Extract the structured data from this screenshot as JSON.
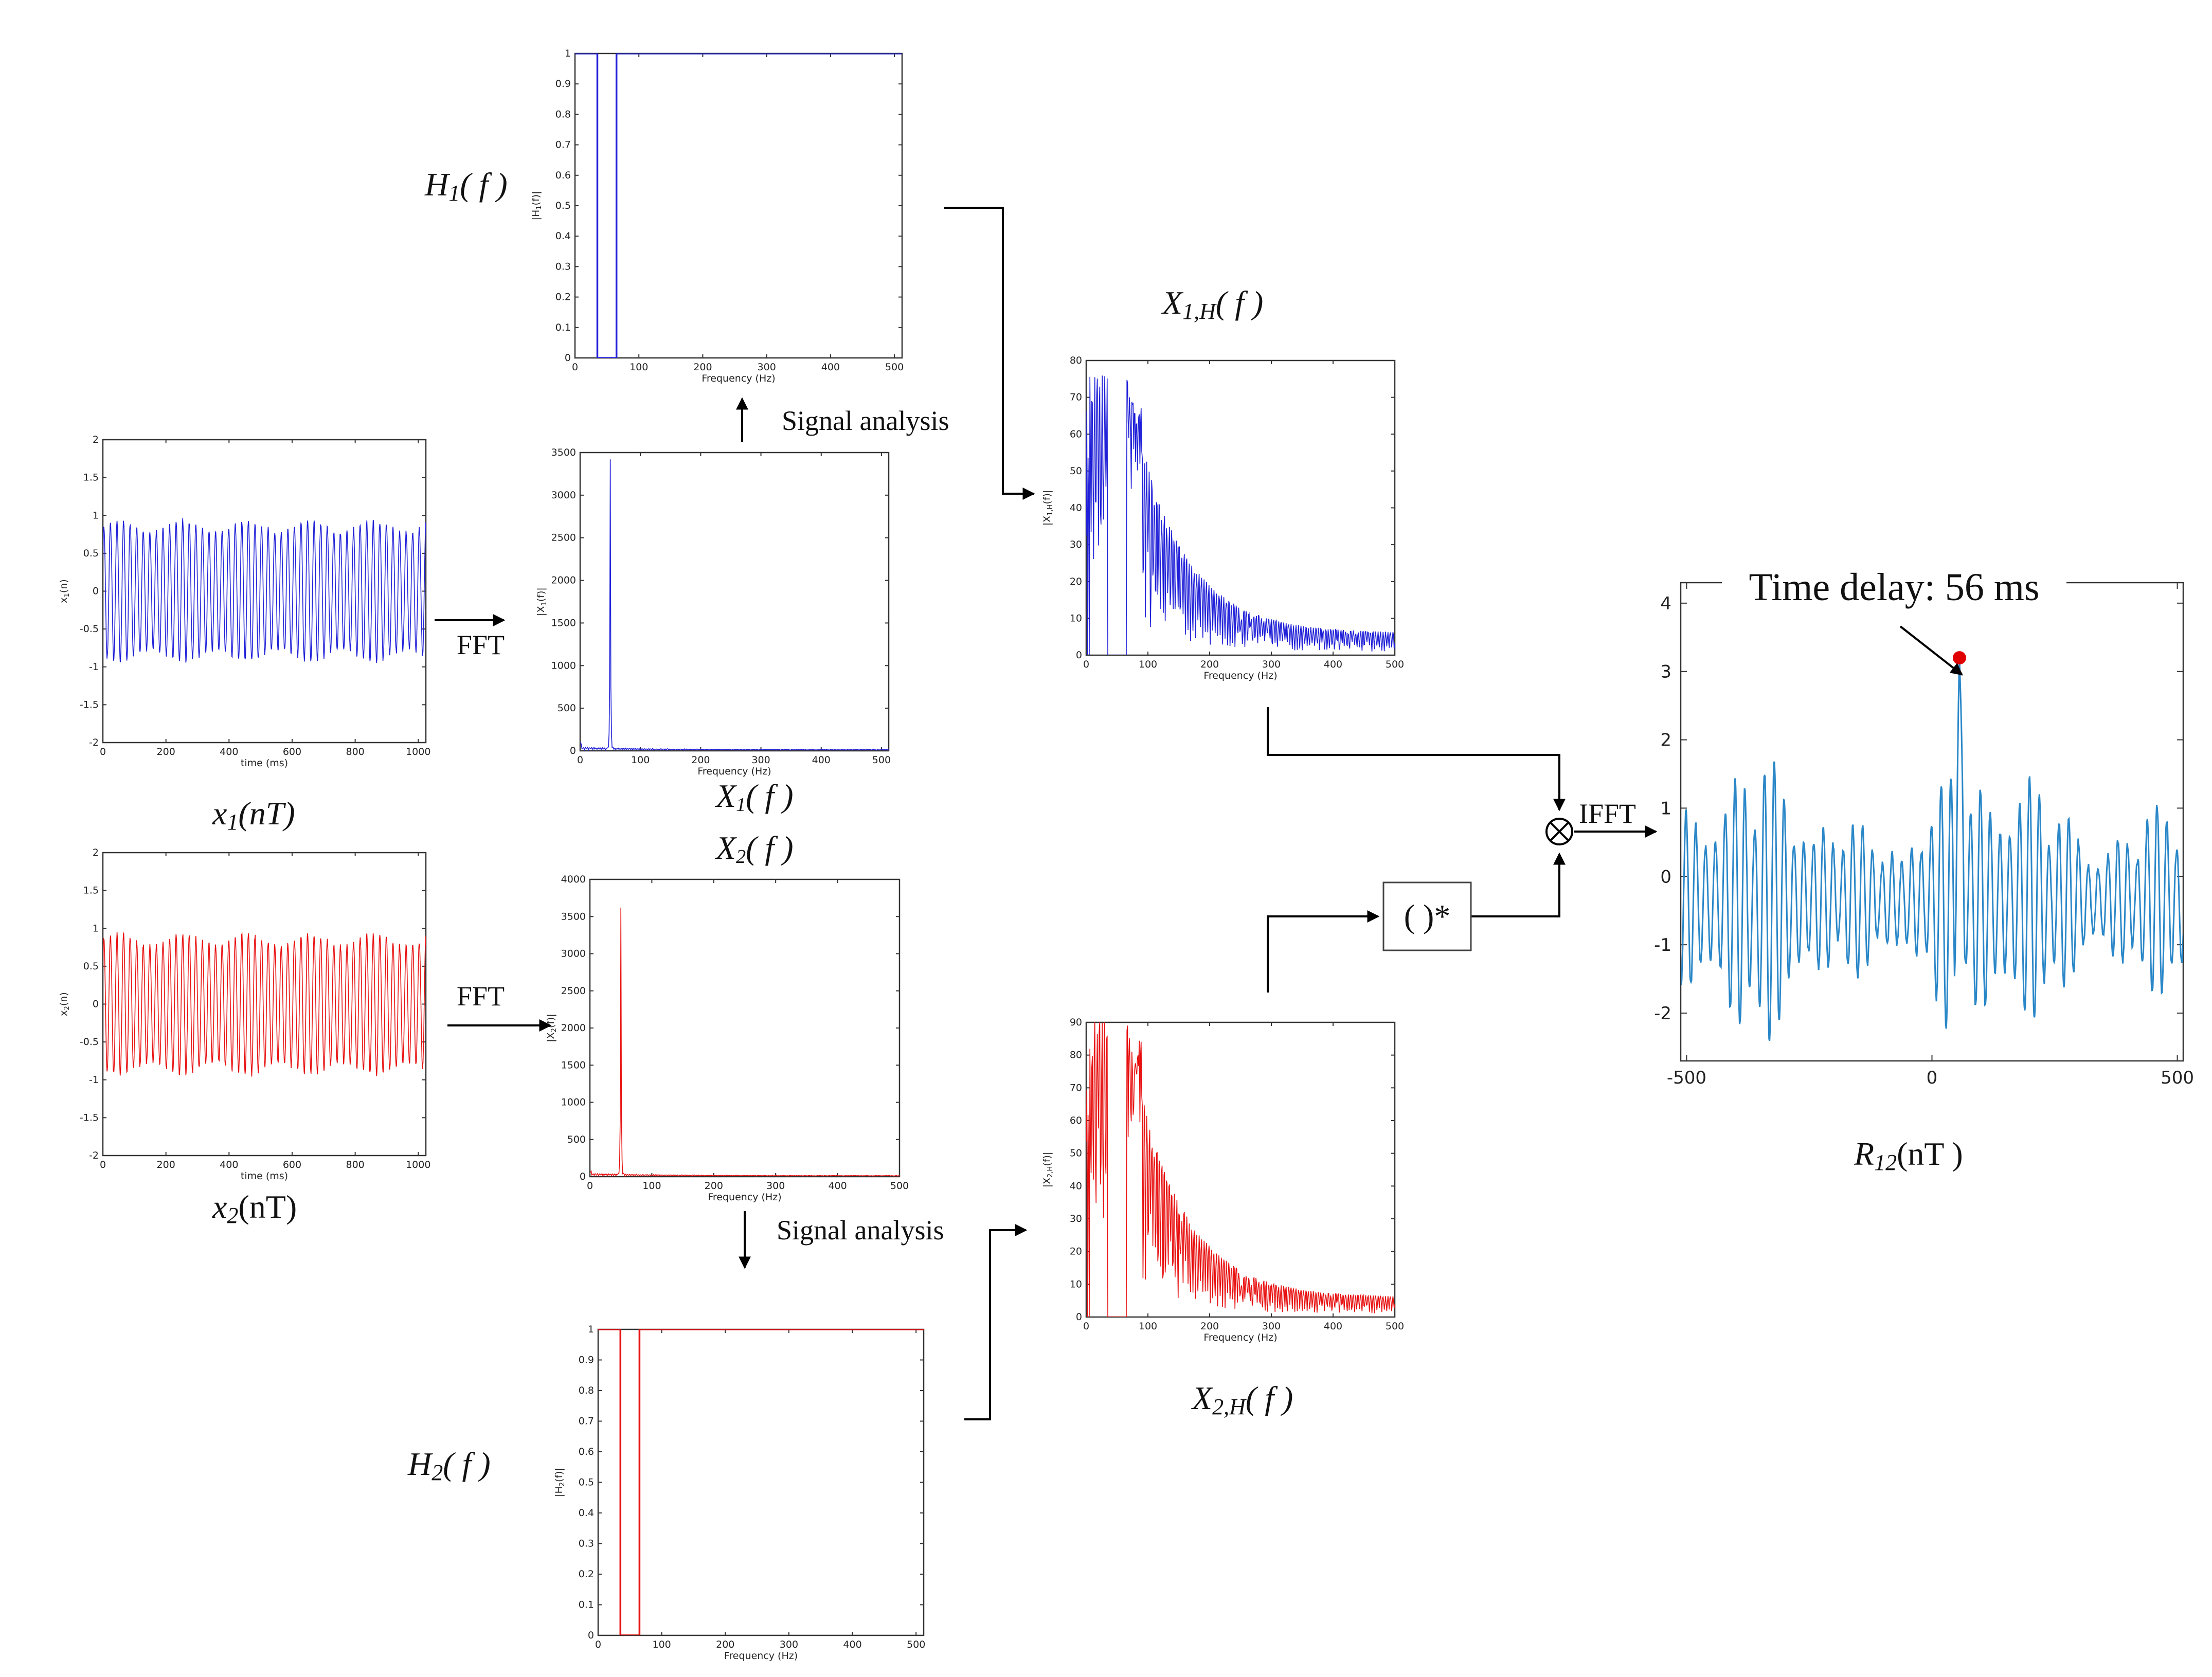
{
  "labels": {
    "fft_top": "FFT",
    "fft_bottom": "FFT",
    "signal_analysis_top": "Signal analysis",
    "signal_analysis_bottom": "Signal analysis",
    "ifft": "IFFT",
    "conjugate": "( )*",
    "time_delay": "Time delay: 56 ms"
  },
  "colors": {
    "blue": "#2020d8",
    "red": "#e81010",
    "teal": "#2a87c8",
    "peak_marker": "#e00000"
  },
  "chart_data": [
    {
      "id": "x1",
      "type": "line",
      "color": "blue",
      "signal": "sine",
      "caption_main": "x",
      "caption_sub": "1",
      "caption_rest": "(nT)",
      "ylabel_main": "x",
      "ylabel_sub": "1",
      "ylabel_rest": "(n)",
      "xlabel": "time (ms)",
      "xlim": [
        0,
        1024
      ],
      "ylim": [
        -2,
        2
      ],
      "xticks": [
        0,
        200,
        400,
        600,
        800,
        1000
      ],
      "yticks": [
        -2,
        -1.5,
        -1,
        -0.5,
        0,
        0.5,
        1,
        1.5,
        2
      ],
      "approx_frequency_hz": 48,
      "amplitude": 0.85
    },
    {
      "id": "x2",
      "type": "line",
      "color": "red",
      "signal": "sine",
      "caption_main": "x",
      "caption_sub": "2",
      "caption_rest": "(nT)",
      "ylabel_main": "x",
      "ylabel_sub": "2",
      "ylabel_rest": "(n)",
      "xlabel": "time (ms)",
      "xlim": [
        0,
        1024
      ],
      "ylim": [
        -2,
        2
      ],
      "xticks": [
        0,
        200,
        400,
        600,
        800,
        1000
      ],
      "yticks": [
        -2,
        -1.5,
        -1,
        -0.5,
        0,
        0.5,
        1,
        1.5,
        2
      ],
      "approx_frequency_hz": 48,
      "amplitude": 0.85
    },
    {
      "id": "X1",
      "type": "line",
      "color": "blue",
      "signal": "spectrum",
      "caption_main": "X",
      "caption_sub": "1",
      "caption_rest": "( f )",
      "ylabel_main": "|X",
      "ylabel_sub": "1",
      "ylabel_rest": "(f)|",
      "xlabel": "Frequency (Hz)",
      "xlim": [
        0,
        512
      ],
      "ylim": [
        0,
        3500
      ],
      "xticks": [
        0,
        100,
        200,
        300,
        400,
        500
      ],
      "yticks": [
        0,
        500,
        1000,
        1500,
        2000,
        2500,
        3000,
        3500
      ],
      "peak_frequency_hz": 50,
      "peak_value": 3420
    },
    {
      "id": "X2",
      "type": "line",
      "color": "red",
      "signal": "spectrum",
      "caption_main": "X",
      "caption_sub": "2",
      "caption_rest": "( f )",
      "ylabel_main": "|X",
      "ylabel_sub": "2",
      "ylabel_rest": "(f)|",
      "xlabel": "Frequency (Hz)",
      "xlim": [
        0,
        500
      ],
      "ylim": [
        0,
        4000
      ],
      "xticks": [
        0,
        100,
        200,
        300,
        400,
        500
      ],
      "yticks": [
        0,
        500,
        1000,
        1500,
        2000,
        2500,
        3000,
        3500,
        4000
      ],
      "peak_frequency_hz": 50,
      "peak_value": 3620
    },
    {
      "id": "H1",
      "type": "line",
      "color": "blue",
      "signal": "notch",
      "caption_main": "H",
      "caption_sub": "1",
      "caption_rest": "( f )",
      "ylabel_main": "|H",
      "ylabel_sub": "1",
      "ylabel_rest": "(f)|",
      "xlabel": "Frequency (Hz)",
      "xlim": [
        0,
        512
      ],
      "ylim": [
        0,
        1
      ],
      "xticks": [
        0,
        100,
        200,
        300,
        400,
        500
      ],
      "yticks": [
        0,
        0.1,
        0.2,
        0.3,
        0.4,
        0.5,
        0.6,
        0.7,
        0.8,
        0.9,
        1
      ],
      "stopband_hz": [
        35,
        65
      ]
    },
    {
      "id": "H2",
      "type": "line",
      "color": "red",
      "signal": "notch",
      "caption_main": "H",
      "caption_sub": "2",
      "caption_rest": "( f )",
      "ylabel_main": "|H",
      "ylabel_sub": "2",
      "ylabel_rest": "(f)|",
      "xlabel": "Frequency (Hz)",
      "xlim": [
        0,
        512
      ],
      "ylim": [
        0,
        1
      ],
      "xticks": [
        0,
        100,
        200,
        300,
        400,
        500
      ],
      "yticks": [
        0,
        0.1,
        0.2,
        0.3,
        0.4,
        0.5,
        0.6,
        0.7,
        0.8,
        0.9,
        1
      ],
      "stopband_hz": [
        35,
        65
      ]
    },
    {
      "id": "X1H",
      "type": "line",
      "color": "blue",
      "signal": "filtered",
      "caption_main": "X",
      "caption_sub": "1,H",
      "caption_rest": "( f )",
      "ylabel_main": "|X",
      "ylabel_sub": "1,H",
      "ylabel_rest": "(f)|",
      "xlabel": "Frequency (Hz)",
      "xlim": [
        0,
        500
      ],
      "ylim": [
        0,
        80
      ],
      "xticks": [
        0,
        100,
        200,
        300,
        400,
        500
      ],
      "yticks": [
        0,
        10,
        20,
        30,
        40,
        50,
        60,
        70,
        80
      ],
      "stopband_hz": [
        35,
        65
      ],
      "max_value": 74
    },
    {
      "id": "X2H",
      "type": "line",
      "color": "red",
      "signal": "filtered",
      "caption_main": "X",
      "caption_sub": "2,H",
      "caption_rest": "( f )",
      "ylabel_main": "|X",
      "ylabel_sub": "2,H",
      "ylabel_rest": "(f)|",
      "xlabel": "Frequency (Hz)",
      "xlim": [
        0,
        500
      ],
      "ylim": [
        0,
        90
      ],
      "xticks": [
        0,
        100,
        200,
        300,
        400,
        500
      ],
      "yticks": [
        0,
        10,
        20,
        30,
        40,
        50,
        60,
        70,
        80,
        90
      ],
      "stopband_hz": [
        35,
        65
      ],
      "max_value": 89
    },
    {
      "id": "R12",
      "type": "line",
      "color": "teal",
      "signal": "xcorr",
      "caption_main": "R",
      "caption_sub": "12",
      "caption_rest": "(nT )",
      "xlim": [
        -512,
        512
      ],
      "ylim": [
        -2.7,
        4.3
      ],
      "xticks": [
        -500,
        0,
        500
      ],
      "yticks": [
        -2,
        -1,
        0,
        1,
        2,
        3,
        4
      ],
      "peak_lag_ms": 56,
      "peak_value": 3.2
    }
  ]
}
